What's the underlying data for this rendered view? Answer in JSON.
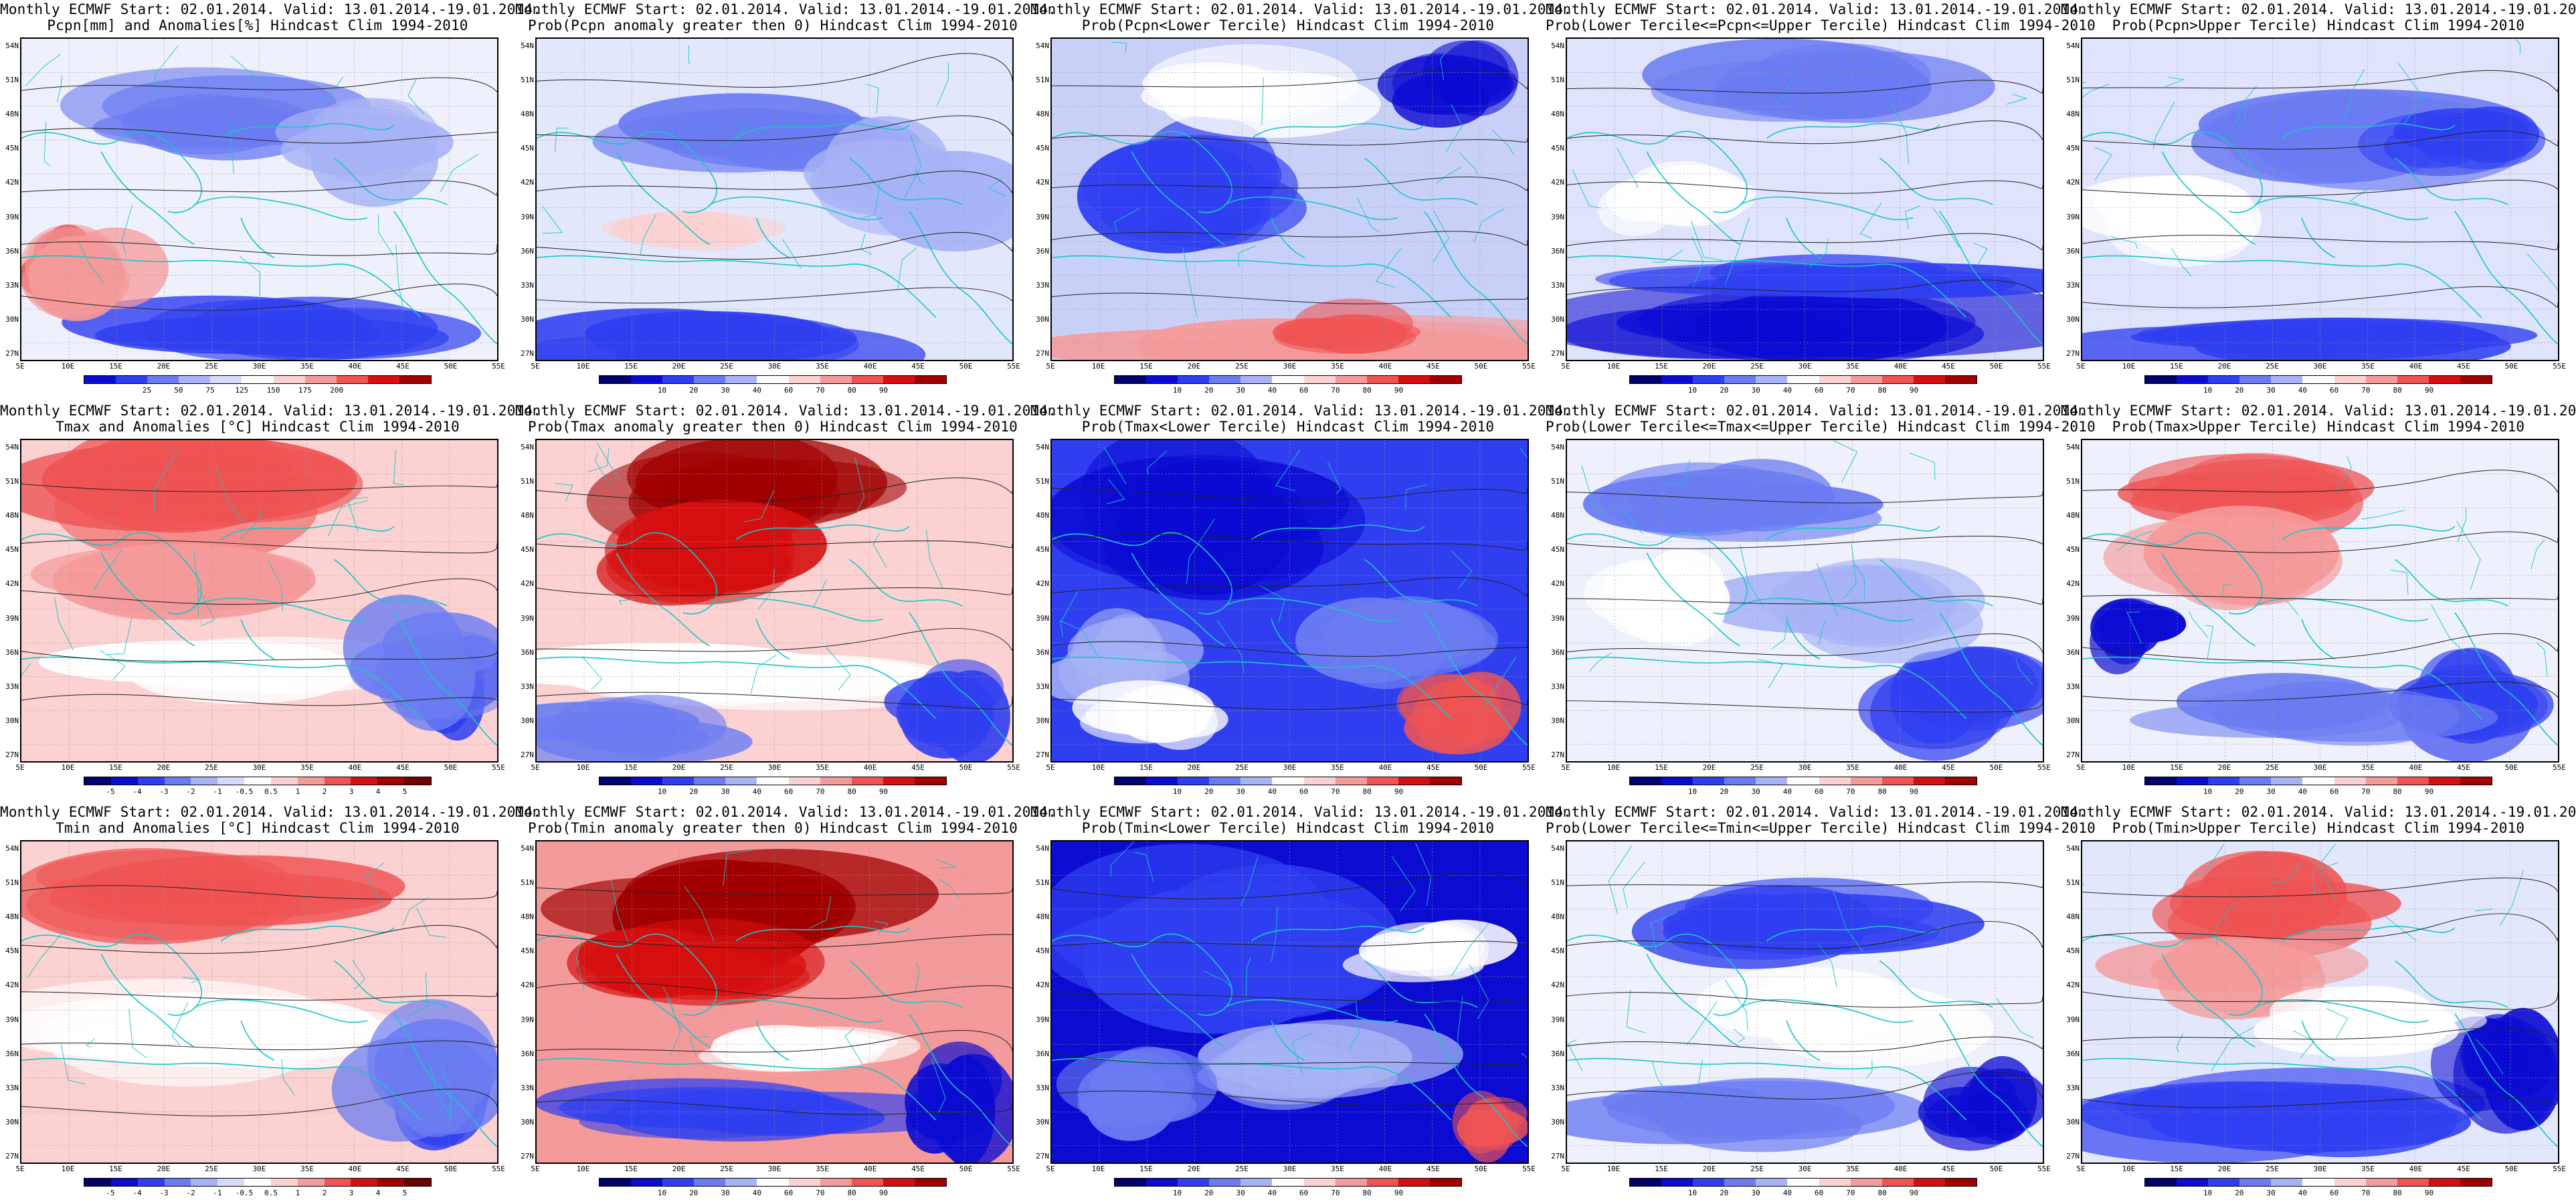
{
  "header_line": "Monthly ECMWF Start: 02.01.2014. Valid: 13.01.2014.-19.01.2014.",
  "lat_labels": [
    "54N",
    "51N",
    "48N",
    "45N",
    "42N",
    "39N",
    "36N",
    "33N",
    "30N",
    "27N"
  ],
  "lon_labels": [
    "5E",
    "10E",
    "15E",
    "20E",
    "25E",
    "30E",
    "35E",
    "40E",
    "45E",
    "50E",
    "55E"
  ],
  "colorbars": {
    "pcpn_anom": {
      "ticks": [
        "25",
        "50",
        "75",
        "125",
        "150",
        "175",
        "200"
      ],
      "colors": [
        "#0b0bd2",
        "#2f3ff0",
        "#6b7cf2",
        "#a7b3f6",
        "#d6dbfb",
        "#ffffff",
        "#fbd1d1",
        "#f59a9a",
        "#ef5353",
        "#d50f0f",
        "#a00000"
      ]
    },
    "temp_anom": {
      "ticks": [
        "-5",
        "-4",
        "-3",
        "-2",
        "-1",
        "-0.5",
        "0.5",
        "1",
        "2",
        "3",
        "4",
        "5"
      ],
      "colors": [
        "#00006e",
        "#0b0bd2",
        "#2f3ff0",
        "#6b7cf2",
        "#a7b3f6",
        "#d6dbfb",
        "#ffffff",
        "#fbd1d1",
        "#f59a9a",
        "#ef5353",
        "#d50f0f",
        "#a00000",
        "#6e0000"
      ]
    },
    "prob": {
      "ticks": [
        "10",
        "20",
        "30",
        "40",
        "60",
        "70",
        "80",
        "90"
      ],
      "colors": [
        "#00006e",
        "#0b0bd2",
        "#2f3ff0",
        "#6b7cf2",
        "#a7b3f6",
        "#ffffff",
        "#fbd1d1",
        "#f59a9a",
        "#ef5353",
        "#d50f0f",
        "#a00000"
      ]
    }
  },
  "panels": [
    {
      "line2": "Pcpn[mm] and Anomalies[%] Hindcast Clim 1994-2010",
      "cb": "pcpn_anom",
      "style": "pcpn_anom"
    },
    {
      "line2": "Prob(Pcpn anomaly greater then 0) Hindcast Clim 1994-2010",
      "cb": "prob",
      "style": "pcpn_prob"
    },
    {
      "line2": "Prob(Pcpn<Lower Tercile) Hindcast Clim 1994-2010",
      "cb": "prob",
      "style": "pcpn_lower"
    },
    {
      "line2": "Prob(Lower Tercile<=Pcpn<=Upper Tercile) Hindcast Clim 1994-2010",
      "cb": "prob",
      "style": "pcpn_mid"
    },
    {
      "line2": "Prob(Pcpn>Upper Tercile) Hindcast Clim 1994-2010",
      "cb": "prob",
      "style": "pcpn_upper"
    },
    {
      "line2": "Tmax and Anomalies [°C] Hindcast Clim 1994-2010",
      "cb": "temp_anom",
      "style": "tmax_anom"
    },
    {
      "line2": "Prob(Tmax anomaly greater then 0) Hindcast Clim 1994-2010",
      "cb": "prob",
      "style": "tmax_prob"
    },
    {
      "line2": "Prob(Tmax<Lower Tercile) Hindcast Clim 1994-2010",
      "cb": "prob",
      "style": "tmax_lower"
    },
    {
      "line2": "Prob(Lower Tercile<=Tmax<=Upper Tercile) Hindcast Clim 1994-2010",
      "cb": "prob",
      "style": "tmax_mid"
    },
    {
      "line2": "Prob(Tmax>Upper Tercile) Hindcast Clim 1994-2010",
      "cb": "prob",
      "style": "tmax_upper"
    },
    {
      "line2": "Tmin and Anomalies [°C] Hindcast Clim 1994-2010",
      "cb": "temp_anom",
      "style": "tmin_anom"
    },
    {
      "line2": "Prob(Tmin anomaly greater then 0) Hindcast Clim 1994-2010",
      "cb": "prob",
      "style": "tmin_prob"
    },
    {
      "line2": "Prob(Tmin<Lower Tercile) Hindcast Clim 1994-2010",
      "cb": "prob",
      "style": "tmin_lower"
    },
    {
      "line2": "Prob(Lower Tercile<=Tmin<=Upper Tercile) Hindcast Clim 1994-2010",
      "cb": "prob",
      "style": "tmin_mid"
    },
    {
      "line2": "Prob(Tmin>Upper Tercile) Hindcast Clim 1994-2010",
      "cb": "prob",
      "style": "tmin_upper"
    }
  ]
}
